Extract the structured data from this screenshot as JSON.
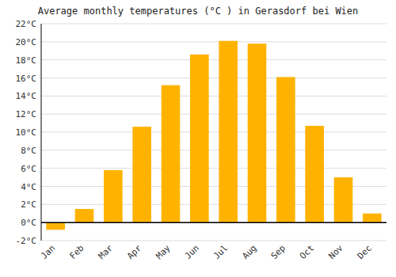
{
  "chart_data": {
    "type": "bar",
    "title": "Average monthly temperatures (°C ) in Gerasdorf bei Wien",
    "categories": [
      "Jan",
      "Feb",
      "Mar",
      "Apr",
      "May",
      "Jun",
      "Jul",
      "Aug",
      "Sep",
      "Oct",
      "Nov",
      "Dec"
    ],
    "values": [
      -0.8,
      1.5,
      5.8,
      10.6,
      15.2,
      18.6,
      20.1,
      19.8,
      16.1,
      10.7,
      5.0,
      1.0
    ],
    "color": "#FFB300",
    "ylim": [
      -2,
      22
    ],
    "yticks": [
      {
        "value": -2,
        "label": "-2°C"
      },
      {
        "value": 0,
        "label": "0°C"
      },
      {
        "value": 2,
        "label": "2°C"
      },
      {
        "value": 4,
        "label": "4°C"
      },
      {
        "value": 6,
        "label": "6°C"
      },
      {
        "value": 8,
        "label": "8°C"
      },
      {
        "value": 10,
        "label": "10°C"
      },
      {
        "value": 12,
        "label": "12°C"
      },
      {
        "value": 14,
        "label": "14°C"
      },
      {
        "value": 16,
        "label": "16°C"
      },
      {
        "value": 18,
        "label": "18°C"
      },
      {
        "value": 20,
        "label": "20°C"
      },
      {
        "value": 22,
        "label": "22°C"
      }
    ],
    "grid": true
  }
}
